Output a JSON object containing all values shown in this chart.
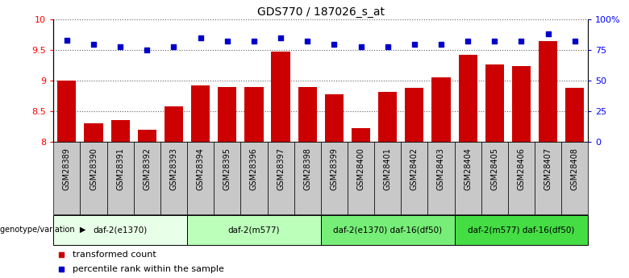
{
  "title": "GDS770 / 187026_s_at",
  "samples": [
    "GSM28389",
    "GSM28390",
    "GSM28391",
    "GSM28392",
    "GSM28393",
    "GSM28394",
    "GSM28395",
    "GSM28396",
    "GSM28397",
    "GSM28398",
    "GSM28399",
    "GSM28400",
    "GSM28401",
    "GSM28402",
    "GSM28403",
    "GSM28404",
    "GSM28405",
    "GSM28406",
    "GSM28407",
    "GSM28408"
  ],
  "transformed_count": [
    9.0,
    8.3,
    8.35,
    8.2,
    8.58,
    8.92,
    8.9,
    8.9,
    9.47,
    8.9,
    8.78,
    8.22,
    8.82,
    8.88,
    9.05,
    9.42,
    9.27,
    9.24,
    9.65,
    8.88
  ],
  "percentile_rank": [
    83,
    80,
    78,
    75,
    78,
    85,
    82,
    82,
    85,
    82,
    80,
    78,
    78,
    80,
    80,
    82,
    82,
    82,
    88,
    82
  ],
  "ylim_left": [
    8.0,
    10.0
  ],
  "ylim_right": [
    0,
    100
  ],
  "yticks_left": [
    8.0,
    8.5,
    9.0,
    9.5,
    10.0
  ],
  "yticks_right": [
    0,
    25,
    50,
    75,
    100
  ],
  "ytick_labels_right": [
    "0",
    "25",
    "50",
    "75",
    "100%"
  ],
  "groups": [
    {
      "label": "daf-2(e1370)",
      "start": 0,
      "end": 4,
      "color": "#e8ffe8"
    },
    {
      "label": "daf-2(m577)",
      "start": 5,
      "end": 9,
      "color": "#bbffbb"
    },
    {
      "label": "daf-2(e1370) daf-16(df50)",
      "start": 10,
      "end": 14,
      "color": "#77ee77"
    },
    {
      "label": "daf-2(m577) daf-16(df50)",
      "start": 15,
      "end": 19,
      "color": "#44dd44"
    }
  ],
  "bar_color": "#cc0000",
  "dot_color": "#0000cc",
  "xtick_bg": "#c8c8c8",
  "grid_color": "#606060",
  "plot_bg": "#ffffff"
}
